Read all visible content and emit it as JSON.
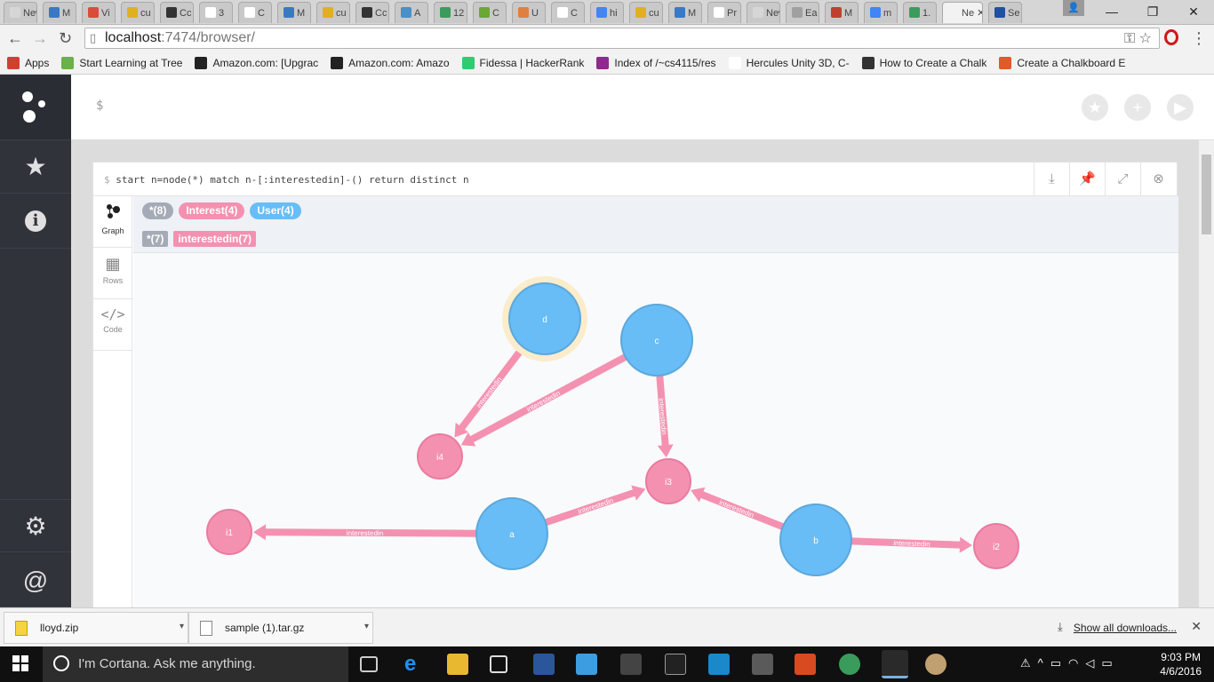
{
  "browser": {
    "tabs": [
      {
        "label": "New",
        "color": "#d6d6d6"
      },
      {
        "label": "M",
        "color": "#3b78c4"
      },
      {
        "label": "Vi",
        "color": "#d94c3a"
      },
      {
        "label": "cu",
        "color": "#e0b020"
      },
      {
        "label": "Cc",
        "color": "#333333"
      },
      {
        "label": "3",
        "color": "#ffffff"
      },
      {
        "label": "C",
        "color": "#ffffff"
      },
      {
        "label": "M",
        "color": "#3b78c4"
      },
      {
        "label": "cu",
        "color": "#e0b020"
      },
      {
        "label": "Cc",
        "color": "#333333"
      },
      {
        "label": "A",
        "color": "#4a90c8"
      },
      {
        "label": "12",
        "color": "#3a9c5c"
      },
      {
        "label": "C",
        "color": "#6aa833"
      },
      {
        "label": "U",
        "color": "#e08040"
      },
      {
        "label": "C",
        "color": "#ffffff"
      },
      {
        "label": "hi",
        "color": "#4285f4"
      },
      {
        "label": "cu",
        "color": "#e0b020"
      },
      {
        "label": "M",
        "color": "#3b78c4"
      },
      {
        "label": "Pr",
        "color": "#ffffff"
      },
      {
        "label": "New",
        "color": "#d6d6d6"
      },
      {
        "label": "Ea",
        "color": "#a0a0a0"
      },
      {
        "label": "M",
        "color": "#c04030"
      },
      {
        "label": "m",
        "color": "#4285f4"
      },
      {
        "label": "1.",
        "color": "#3a9c5c"
      },
      {
        "label": "Ne",
        "color": "#f2f2f2",
        "active": true
      },
      {
        "label": "Se",
        "color": "#2050a0"
      }
    ],
    "url_host": "localhost",
    "url_path": ":7474/browser/",
    "bookmarks": [
      {
        "label": "Apps",
        "color": "#d04030"
      },
      {
        "label": "Start Learning at Tree",
        "color": "#6ab04c"
      },
      {
        "label": "Amazon.com: [Upgrac",
        "color": "#222222"
      },
      {
        "label": "Amazon.com: Amazo",
        "color": "#222222"
      },
      {
        "label": "Fidessa | HackerRank",
        "color": "#2ecc71"
      },
      {
        "label": "Index of /~cs4115/res",
        "color": "#8e2a8e"
      },
      {
        "label": "Hercules Unity 3D, C-",
        "color": "#ffffff"
      },
      {
        "label": "How to Create a Chalk",
        "color": "#333333"
      },
      {
        "label": "Create a Chalkboard E",
        "color": "#e05a2a"
      }
    ]
  },
  "sidebar": {
    "items": [
      {
        "name": "neo4j-logo-icon",
        "glyph": "⁘"
      },
      {
        "name": "favorites-star-icon",
        "glyph": "★"
      },
      {
        "name": "info-icon",
        "glyph": "ℹ"
      },
      {
        "name": "settings-gear-icon",
        "glyph": "⚙"
      },
      {
        "name": "about-at-icon",
        "glyph": "@"
      }
    ]
  },
  "editor": {
    "prompt": "$"
  },
  "frame": {
    "prompt": "$",
    "query": "start n=node(*) match n-[:interestedin]-() return distinct n",
    "view_tabs": [
      {
        "label": "Graph",
        "icon": "graph-icon",
        "active": true
      },
      {
        "label": "Rows",
        "icon": "table-icon",
        "active": false
      },
      {
        "label": "Code",
        "icon": "code-icon",
        "active": false
      }
    ],
    "node_labels": [
      {
        "label": "*(8)",
        "color": "#a5abb6"
      },
      {
        "label": "Interest(4)",
        "color": "#f491b1"
      },
      {
        "label": "User(4)",
        "color": "#68bdf6"
      }
    ],
    "rel_types": [
      {
        "label": "*(7)",
        "color": "#a5abb6"
      },
      {
        "label": "interestedin(7)",
        "color": "#f491b1"
      }
    ]
  },
  "graph": {
    "user_color": "#68bdf6",
    "interest_color": "#f491b1",
    "nodes": [
      {
        "id": "d",
        "type": "user",
        "selected": true
      },
      {
        "id": "c",
        "type": "user"
      },
      {
        "id": "a",
        "type": "user"
      },
      {
        "id": "b",
        "type": "user"
      },
      {
        "id": "i4",
        "type": "interest"
      },
      {
        "id": "i3",
        "type": "interest"
      },
      {
        "id": "i1",
        "type": "interest"
      },
      {
        "id": "i2",
        "type": "interest"
      }
    ],
    "relationships": [
      {
        "from": "d",
        "to": "i4",
        "label": "interestedin"
      },
      {
        "from": "c",
        "to": "i4",
        "label": "interestedin"
      },
      {
        "from": "c",
        "to": "i3",
        "label": "interestedin"
      },
      {
        "from": "a",
        "to": "i1",
        "label": "interestedin"
      },
      {
        "from": "a",
        "to": "i3",
        "label": "interestedin"
      },
      {
        "from": "b",
        "to": "i3",
        "label": "interestedin"
      },
      {
        "from": "b",
        "to": "i2",
        "label": "interestedin"
      }
    ]
  },
  "downloads": {
    "items": [
      {
        "label": "lloyd.zip"
      },
      {
        "label": "sample (1).tar.gz"
      }
    ],
    "show_all": "Show all downloads..."
  },
  "taskbar": {
    "cortana": "I'm Cortana. Ask me anything.",
    "time": "9:03 PM",
    "date": "4/6/2016"
  }
}
